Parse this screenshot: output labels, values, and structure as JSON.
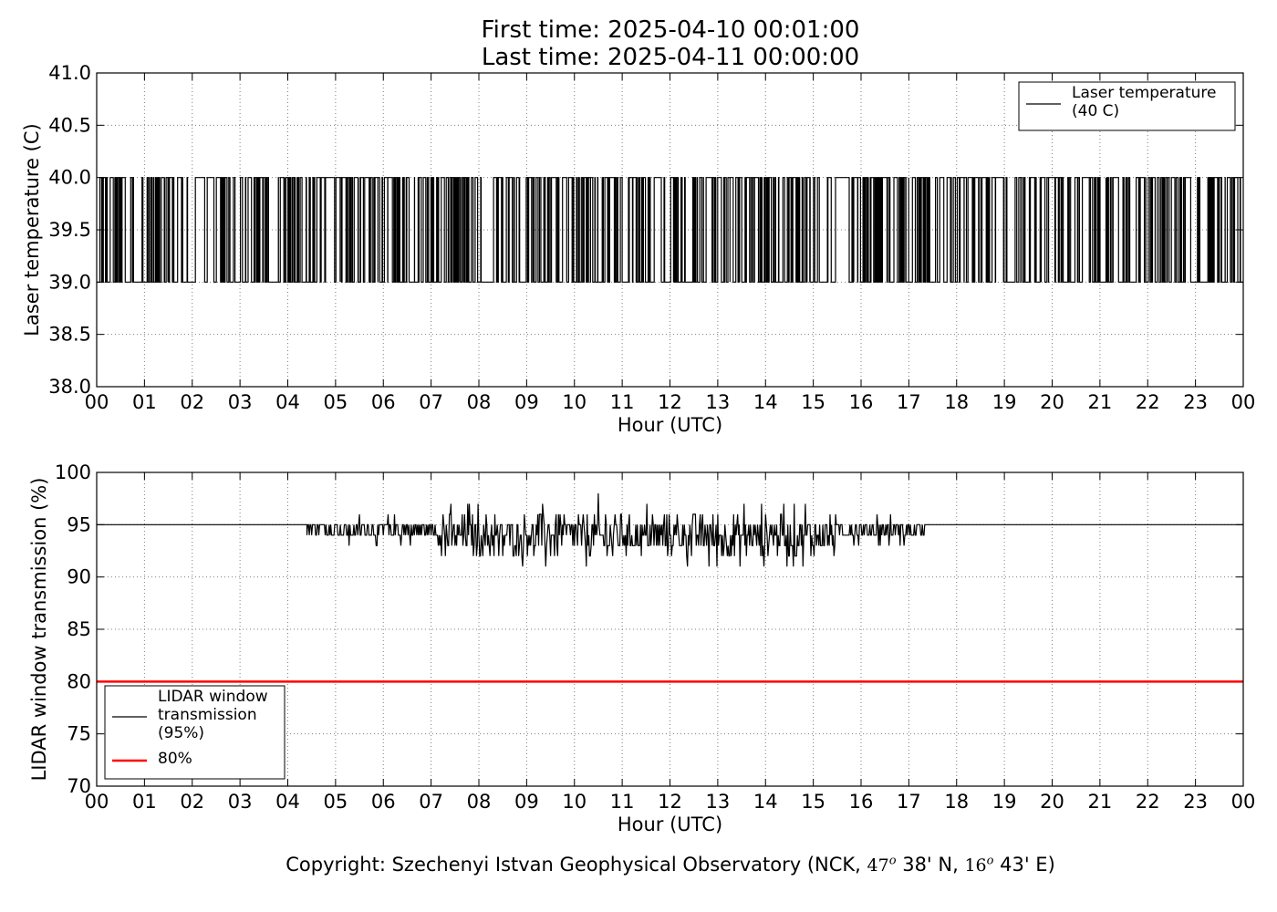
{
  "header": {
    "first_time": "First time: 2025-04-10 00:01:00",
    "last_time": "Last time: 2025-04-11 00:00:00"
  },
  "footer": {
    "prefix": "Copyright: Szechenyi Istvan Geophysical Observatory (NCK, ",
    "lat_deg": "47",
    "lat_rest": " 38' N, ",
    "lon_deg": "16",
    "lon_rest": " 43' E)",
    "degree_mark": "o"
  },
  "colors": {
    "series": "#000000",
    "threshold": "#ff0000",
    "grid": "#7f7f7f"
  },
  "chart_data": [
    {
      "type": "line",
      "xlabel": "Hour (UTC)",
      "ylabel": "Laser temperature (C)",
      "xlim": [
        0,
        24
      ],
      "ylim": [
        38.0,
        41.0
      ],
      "x_ticks": [
        "00",
        "01",
        "02",
        "03",
        "04",
        "05",
        "06",
        "07",
        "08",
        "09",
        "10",
        "11",
        "12",
        "13",
        "14",
        "15",
        "16",
        "17",
        "18",
        "19",
        "20",
        "21",
        "22",
        "23",
        "00"
      ],
      "y_ticks": [
        "38.0",
        "38.5",
        "39.0",
        "39.5",
        "40.0",
        "40.5",
        "41.0"
      ],
      "grid": true,
      "legend_position": "top-right",
      "series": [
        {
          "name": "Laser temperature\n(40 C)",
          "color": "#000000",
          "style": "step",
          "levels": [
            39.0,
            40.0
          ],
          "segments": [
            {
              "x": [
                0.0,
                0.6
              ],
              "toggles": 24
            },
            {
              "x": [
                0.6,
                1.0
              ],
              "toggles": 6
            },
            {
              "x": [
                1.0,
                1.6
              ],
              "toggles": 26
            },
            {
              "x": [
                1.6,
                2.3
              ],
              "toggles": 10
            },
            {
              "x": [
                2.3,
                3.0
              ],
              "toggles": 14
            },
            {
              "x": [
                3.0,
                3.6
              ],
              "toggles": 24
            },
            {
              "x": [
                3.6,
                3.8
              ],
              "toggles": 0
            },
            {
              "x": [
                3.8,
                4.3
              ],
              "toggles": 28
            },
            {
              "x": [
                4.3,
                5.0
              ],
              "toggles": 16
            },
            {
              "x": [
                5.0,
                6.0
              ],
              "toggles": 40
            },
            {
              "x": [
                6.0,
                6.7
              ],
              "toggles": 22
            },
            {
              "x": [
                6.7,
                7.8
              ],
              "toggles": 52
            },
            {
              "x": [
                7.8,
                8.3
              ],
              "toggles": 6
            },
            {
              "x": [
                8.3,
                10.0
              ],
              "toggles": 50
            },
            {
              "x": [
                10.0,
                13.2
              ],
              "toggles": 96
            },
            {
              "x": [
                13.2,
                15.0
              ],
              "toggles": 70
            },
            {
              "x": [
                15.0,
                15.8
              ],
              "toggles": 10
            },
            {
              "x": [
                15.8,
                17.6
              ],
              "toggles": 80
            },
            {
              "x": [
                17.6,
                18.0
              ],
              "toggles": 8
            },
            {
              "x": [
                18.0,
                24.0
              ],
              "toggles": 170
            }
          ]
        }
      ]
    },
    {
      "type": "line",
      "xlabel": "Hour (UTC)",
      "ylabel": "LIDAR window transmission (%)",
      "xlim": [
        0,
        24
      ],
      "ylim": [
        70,
        100
      ],
      "x_ticks": [
        "00",
        "01",
        "02",
        "03",
        "04",
        "05",
        "06",
        "07",
        "08",
        "09",
        "10",
        "11",
        "12",
        "13",
        "14",
        "15",
        "16",
        "17",
        "18",
        "19",
        "20",
        "21",
        "22",
        "23",
        "00"
      ],
      "y_ticks": [
        "70",
        "75",
        "80",
        "85",
        "90",
        "95",
        "100"
      ],
      "grid": true,
      "legend_position": "bottom-left",
      "series": [
        {
          "name": "LIDAR window\ntransmission\n(95%)",
          "color": "#000000",
          "baseline": 95,
          "noisy_range": [
            4.4,
            17.4
          ],
          "noisy_values_approx": {
            "min": 91,
            "max": 98
          }
        },
        {
          "name": "80%",
          "color": "#ff0000",
          "y": 80
        }
      ]
    }
  ]
}
